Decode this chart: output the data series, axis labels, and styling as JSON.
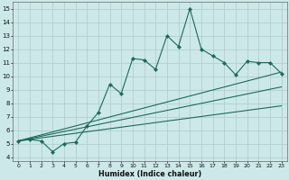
{
  "title": "",
  "xlabel": "Humidex (Indice chaleur)",
  "xlim": [
    0,
    23
  ],
  "ylim": [
    4,
    15
  ],
  "yticks": [
    4,
    5,
    6,
    7,
    8,
    9,
    10,
    11,
    12,
    13,
    14,
    15
  ],
  "xticks": [
    0,
    1,
    2,
    3,
    4,
    5,
    6,
    7,
    8,
    9,
    10,
    11,
    12,
    13,
    14,
    15,
    16,
    17,
    18,
    19,
    20,
    21,
    22,
    23
  ],
  "bg_color": "#cde8e8",
  "grid_color": "#a8cccc",
  "line_color": "#1a6b5a",
  "series1_x": [
    0,
    1,
    2,
    3,
    4,
    5,
    6,
    7,
    8,
    9,
    10,
    11,
    12,
    13,
    14,
    15,
    16,
    17,
    18,
    19,
    20,
    21,
    22,
    23
  ],
  "series1_y": [
    5.2,
    5.3,
    5.2,
    4.4,
    5.0,
    5.1,
    6.3,
    7.3,
    9.4,
    8.7,
    11.3,
    11.2,
    10.5,
    13.0,
    12.2,
    15.0,
    12.0,
    11.5,
    11.0,
    10.1,
    11.1,
    11.0,
    11.0,
    10.2
  ],
  "series2_x": [
    0,
    23
  ],
  "series2_y": [
    5.2,
    10.3
  ],
  "series3_x": [
    0,
    23
  ],
  "series3_y": [
    5.2,
    9.2
  ],
  "series4_x": [
    0,
    23
  ],
  "series4_y": [
    5.2,
    7.8
  ]
}
